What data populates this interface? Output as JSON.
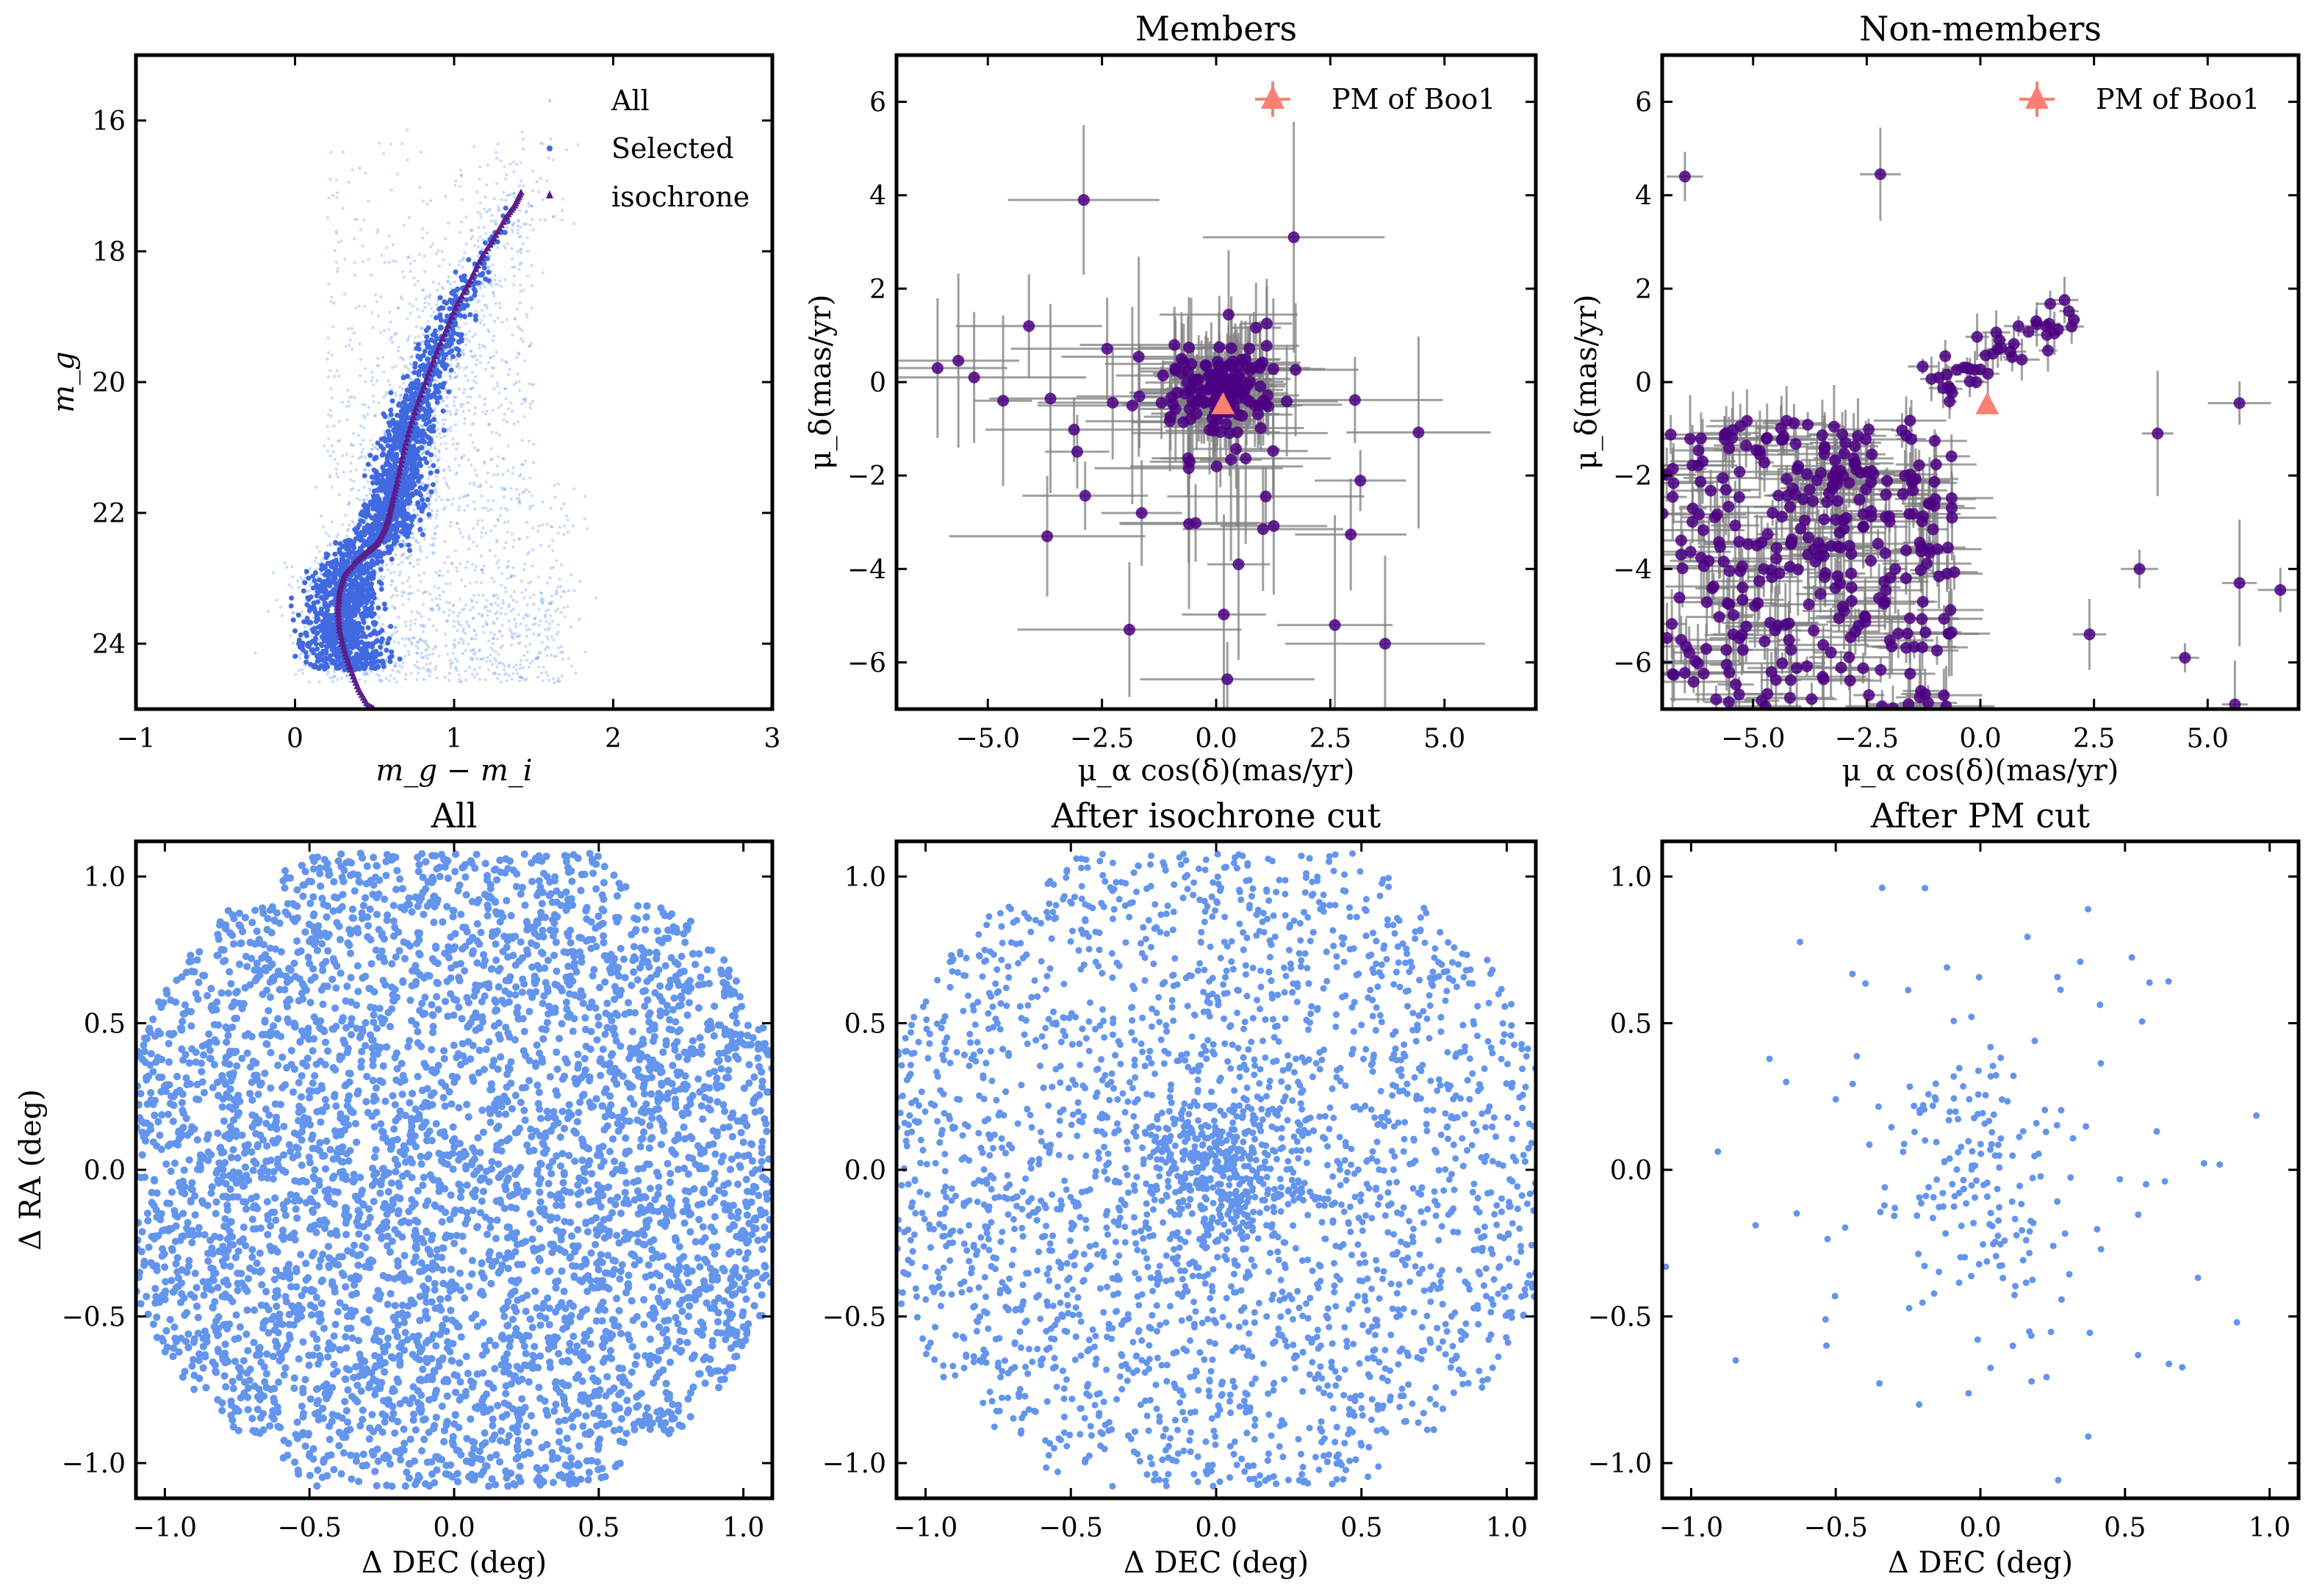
{
  "colors": {
    "all_points": "#6495ed",
    "selected_points": "#4169e1",
    "isochrone": "#5b1f8a",
    "member_points": "#4b0082",
    "error_bars": "#808080",
    "pm_marker": "#fa8072",
    "sky_points": "#6495ed"
  },
  "chart_data": [
    {
      "id": "cmd",
      "type": "scatter",
      "title": "",
      "xlabel": "m_g − m_i",
      "ylabel": "m_g",
      "xlim": [
        -1,
        3
      ],
      "ylim": [
        25,
        15
      ],
      "y_inverted": true,
      "xticks": [
        -1,
        0,
        1,
        2,
        3
      ],
      "yticks": [
        16,
        18,
        20,
        22,
        24
      ],
      "legend": {
        "placement": "top-right",
        "entries": [
          "All",
          "Selected",
          "isochrone"
        ]
      },
      "series": [
        {
          "name": "All",
          "marker": "dot",
          "description": "faint field stars spread across color 0–1.8, mag 16–24.5"
        },
        {
          "name": "Selected",
          "marker": "dot",
          "description": "stars hugging the isochrone"
        },
        {
          "name": "isochrone",
          "marker": "triangle",
          "x": [
            1.42,
            1.38,
            1.32,
            1.25,
            1.17,
            1.1,
            1.02,
            0.95,
            0.88,
            0.82,
            0.76,
            0.71,
            0.67,
            0.64,
            0.61,
            0.59,
            0.57,
            0.55,
            0.53,
            0.5,
            0.45,
            0.38,
            0.31,
            0.28,
            0.27,
            0.28,
            0.31,
            0.35,
            0.4,
            0.46,
            0.5
          ],
          "y": [
            17.1,
            17.3,
            17.5,
            17.8,
            18.1,
            18.45,
            18.8,
            19.2,
            19.6,
            20.0,
            20.4,
            20.8,
            21.2,
            21.55,
            21.85,
            22.05,
            22.2,
            22.3,
            22.4,
            22.5,
            22.6,
            22.75,
            22.95,
            23.2,
            23.5,
            23.8,
            24.1,
            24.4,
            24.7,
            24.95,
            25.0
          ]
        }
      ]
    },
    {
      "id": "members",
      "type": "scatter",
      "title": "Members",
      "xlabel": "μ_α cos(δ)(mas/yr)",
      "ylabel": "μ_δ(mas/yr)",
      "xlim": [
        -7,
        7
      ],
      "ylim": [
        -7,
        7
      ],
      "xticks": [
        -5.0,
        -2.5,
        0.0,
        2.5,
        5.0
      ],
      "yticks": [
        -6,
        -4,
        -2,
        0,
        2,
        4,
        6
      ],
      "legend": {
        "placement": "top-right",
        "entries": [
          "PM of Boo1"
        ]
      },
      "pm_marker": {
        "name": "PM of Boo1",
        "x": 0.15,
        "y": -0.5
      }
    },
    {
      "id": "nonmembers",
      "type": "scatter",
      "title": "Non-members",
      "xlabel": "μ_α cos(δ)(mas/yr)",
      "ylabel": "μ_δ(mas/yr)",
      "xlim": [
        -7,
        7
      ],
      "ylim": [
        -7,
        7
      ],
      "xticks": [
        -5.0,
        -2.5,
        0.0,
        2.5,
        5.0
      ],
      "yticks": [
        -6,
        -4,
        -2,
        0,
        2,
        4,
        6
      ],
      "legend": {
        "placement": "top-right",
        "entries": [
          "PM of Boo1"
        ]
      },
      "pm_marker": {
        "name": "PM of Boo1",
        "x": 0.15,
        "y": -0.5
      }
    },
    {
      "id": "sky_all",
      "type": "scatter",
      "title": "All",
      "xlabel": "Δ DEC (deg)",
      "ylabel": "Δ RA (deg)",
      "xlim": [
        -1.1,
        1.1
      ],
      "ylim": [
        -1.12,
        1.12
      ],
      "xticks": [
        -1.0,
        -0.5,
        0.0,
        0.5,
        1.0
      ],
      "yticks": [
        -1.0,
        -0.5,
        0.0,
        0.5,
        1.0
      ]
    },
    {
      "id": "sky_iso",
      "type": "scatter",
      "title": "After isochrone cut",
      "xlabel": "Δ DEC (deg)",
      "ylabel": "",
      "xlim": [
        -1.1,
        1.1
      ],
      "ylim": [
        -1.12,
        1.12
      ],
      "xticks": [
        -1.0,
        -0.5,
        0.0,
        0.5,
        1.0
      ],
      "yticks": [
        -1.0,
        -0.5,
        0.0,
        0.5,
        1.0
      ]
    },
    {
      "id": "sky_pm",
      "type": "scatter",
      "title": "After PM cut",
      "xlabel": "Δ DEC (deg)",
      "ylabel": "",
      "xlim": [
        -1.1,
        1.1
      ],
      "ylim": [
        -1.12,
        1.12
      ],
      "xticks": [
        -1.0,
        -0.5,
        0.0,
        0.5,
        1.0
      ],
      "yticks": [
        -1.0,
        -0.5,
        0.0,
        0.5,
        1.0
      ]
    }
  ]
}
